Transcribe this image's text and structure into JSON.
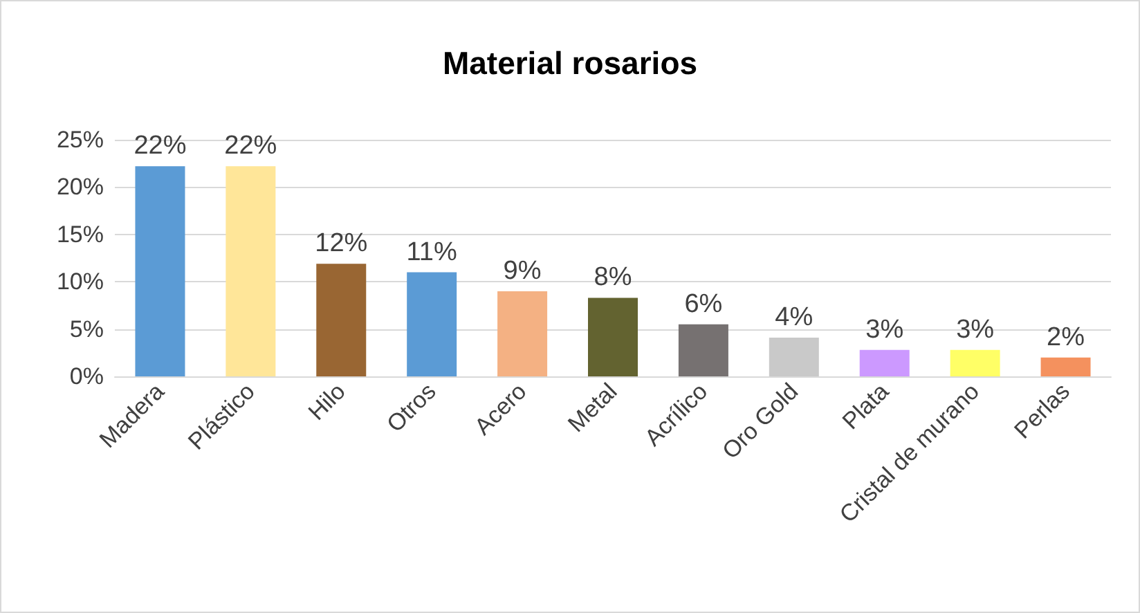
{
  "chart_data": {
    "type": "bar",
    "title": "Material rosarios",
    "categories": [
      "Madera",
      "Plástico",
      "Hilo",
      "Otros",
      "Acero",
      "Metal",
      "Acrílico",
      "Oro Gold",
      "Plata",
      "Cristal de murano",
      "Perlas"
    ],
    "values": [
      22.2,
      22.2,
      11.9,
      11.0,
      9.0,
      8.3,
      5.5,
      4.1,
      2.8,
      2.8,
      2.0
    ],
    "value_labels": [
      "22%",
      "22%",
      "12%",
      "11%",
      "9%",
      "8%",
      "6%",
      "4%",
      "3%",
      "3%",
      "2%"
    ],
    "colors": [
      "#5b9bd5",
      "#ffe699",
      "#996633",
      "#5b9bd5",
      "#f4b183",
      "#636330",
      "#767171",
      "#c9c9c9",
      "#cc99ff",
      "#ffff66",
      "#f4915e"
    ],
    "ylim": [
      0,
      25
    ],
    "yticks": [
      {
        "value": 0,
        "label": "0%"
      },
      {
        "value": 5,
        "label": "5%"
      },
      {
        "value": 10,
        "label": "10%"
      },
      {
        "value": 15,
        "label": "15%"
      },
      {
        "value": 20,
        "label": "20%"
      },
      {
        "value": 25,
        "label": "25%"
      }
    ],
    "grid": "y"
  }
}
